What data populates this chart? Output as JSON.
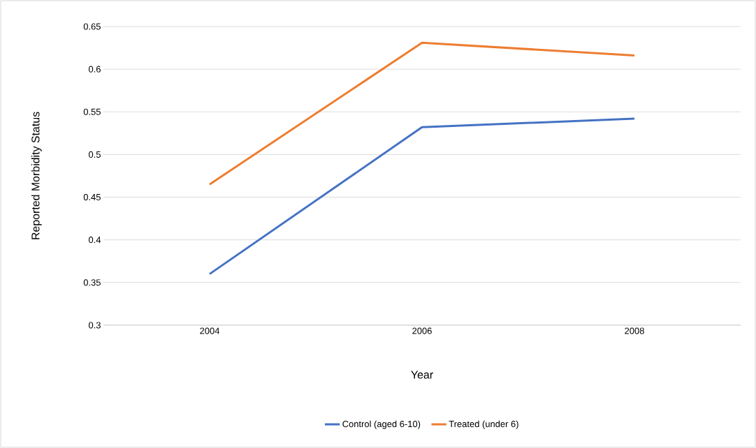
{
  "chart_data": {
    "type": "line",
    "xlabel": "Year",
    "ylabel": "Reported Morbidity Status",
    "categories": [
      "2004",
      "2006",
      "2008"
    ],
    "series": [
      {
        "name": "Control (aged 6-10)",
        "color": "#4472c4",
        "values": [
          0.36,
          0.532,
          0.542
        ]
      },
      {
        "name": "Treated (under 6)",
        "color": "#ed7d31",
        "values": [
          0.465,
          0.631,
          0.616
        ]
      }
    ],
    "ylim": [
      0.3,
      0.65
    ],
    "yticks": [
      0.3,
      0.35,
      0.4,
      0.45,
      0.5,
      0.55,
      0.6,
      0.65
    ],
    "grid": "y",
    "legend": "bottom",
    "marker": "none",
    "line_style": "solid"
  }
}
